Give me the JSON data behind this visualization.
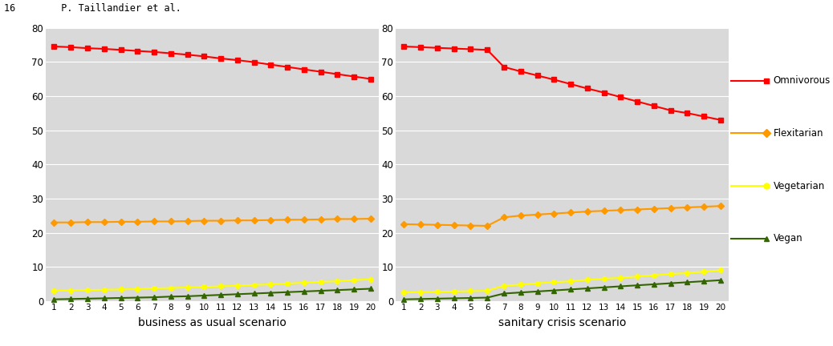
{
  "years": [
    1,
    2,
    3,
    4,
    5,
    6,
    7,
    8,
    9,
    10,
    11,
    12,
    13,
    14,
    15,
    16,
    17,
    18,
    19,
    20
  ],
  "scenario1": {
    "title": "business as usual scenario",
    "omnivorous": [
      74.5,
      74.3,
      74.0,
      73.8,
      73.5,
      73.2,
      72.9,
      72.5,
      72.1,
      71.6,
      71.0,
      70.5,
      69.9,
      69.2,
      68.5,
      67.8,
      67.1,
      66.4,
      65.7,
      65.0
    ],
    "flexitarian": [
      23.0,
      23.0,
      23.1,
      23.1,
      23.2,
      23.2,
      23.3,
      23.3,
      23.4,
      23.5,
      23.5,
      23.6,
      23.6,
      23.7,
      23.8,
      23.8,
      23.9,
      24.0,
      24.0,
      24.1
    ],
    "vegetarian": [
      3.0,
      3.1,
      3.2,
      3.3,
      3.4,
      3.5,
      3.7,
      3.8,
      4.0,
      4.1,
      4.3,
      4.5,
      4.7,
      4.9,
      5.1,
      5.4,
      5.6,
      5.8,
      6.1,
      6.4
    ],
    "vegan": [
      0.5,
      0.6,
      0.7,
      0.8,
      0.9,
      1.0,
      1.1,
      1.3,
      1.4,
      1.6,
      1.8,
      2.0,
      2.2,
      2.4,
      2.6,
      2.8,
      3.0,
      3.2,
      3.4,
      3.6
    ]
  },
  "scenario2": {
    "title": "sanitary crisis scenario",
    "omnivorous": [
      74.5,
      74.3,
      74.1,
      73.9,
      73.7,
      73.5,
      68.5,
      67.2,
      66.0,
      64.8,
      63.5,
      62.2,
      61.0,
      59.7,
      58.4,
      57.1,
      55.8,
      55.0,
      54.0,
      53.0
    ],
    "flexitarian": [
      22.5,
      22.4,
      22.3,
      22.2,
      22.1,
      22.0,
      24.5,
      25.0,
      25.3,
      25.6,
      25.9,
      26.2,
      26.4,
      26.6,
      26.8,
      27.0,
      27.2,
      27.4,
      27.6,
      27.8
    ],
    "vegetarian": [
      2.5,
      2.6,
      2.7,
      2.8,
      2.9,
      3.0,
      4.5,
      4.8,
      5.2,
      5.5,
      5.8,
      6.2,
      6.5,
      6.8,
      7.2,
      7.5,
      7.9,
      8.2,
      8.6,
      9.0
    ],
    "vegan": [
      0.5,
      0.6,
      0.7,
      0.8,
      0.9,
      1.0,
      2.2,
      2.5,
      2.8,
      3.1,
      3.4,
      3.7,
      4.0,
      4.3,
      4.6,
      4.9,
      5.2,
      5.5,
      5.8,
      6.1
    ]
  },
  "colors": {
    "omnivorous": "#ff0000",
    "flexitarian": "#ff9900",
    "vegetarian": "#ffff00",
    "vegan": "#336600"
  },
  "ylim": [
    0,
    80
  ],
  "yticks": [
    0,
    10,
    20,
    30,
    40,
    50,
    60,
    70,
    80
  ],
  "bg_color": "#d9d9d9",
  "fig_bg": "#ffffff",
  "legend_labels": [
    "Omnivorous",
    "Flexitarian",
    "Vegetarian",
    "Vegan"
  ],
  "marker_omnivorous": "s",
  "marker_flexitarian": "D",
  "marker_vegetarian": "o",
  "marker_vegan": "^",
  "markersize": 4,
  "linewidth": 1.5,
  "header_text": "16        P. Taillandier et al."
}
